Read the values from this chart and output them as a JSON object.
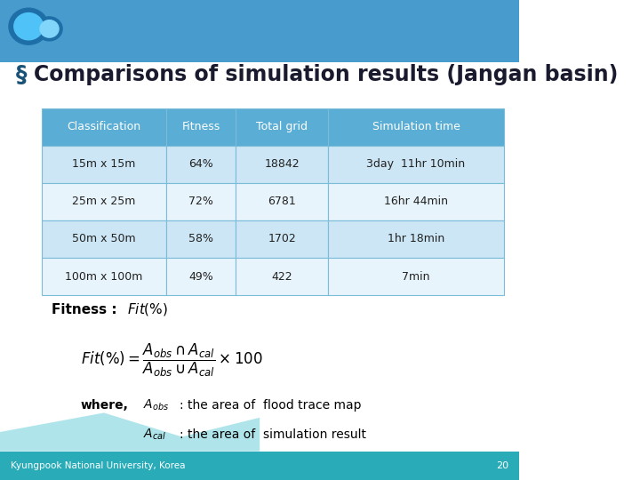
{
  "title": "Comparisons of simulation results (Jangan basin)",
  "bullet_char": "§",
  "table_headers": [
    "Classification",
    "Fitness",
    "Total grid",
    "Simulation time"
  ],
  "table_rows": [
    [
      "15m x 15m",
      "64%",
      "18842",
      "3day  11hr 10min"
    ],
    [
      "25m x 25m",
      "72%",
      "6781",
      "16hr 44min"
    ],
    [
      "50m x 50m",
      "58%",
      "1702",
      "1hr 18min"
    ],
    [
      "100m x 100m",
      "49%",
      "422",
      "7min"
    ]
  ],
  "header_bg": "#4da6d9",
  "row_bg_odd": "#cce6f5",
  "row_bg_even": "#e8f4fb",
  "header_text_color": "#ffffff",
  "row_text_color": "#222222",
  "title_color": "#1a1a2e",
  "slide_bg": "#ffffff",
  "header_top_bg": "#1a6eab",
  "footer_bg": "#2a9db5",
  "footer_text": "Kyungpook National University, Korea",
  "footer_page": "20",
  "fitness_label": "Fitness : ",
  "fitness_formula_img": true,
  "where_text1": "where,",
  "where_text2": ": the area of  flood trace map",
  "where_text3": ": the area of  simulation result",
  "top_bar_height": 0.13,
  "bottom_bar_height": 0.06
}
